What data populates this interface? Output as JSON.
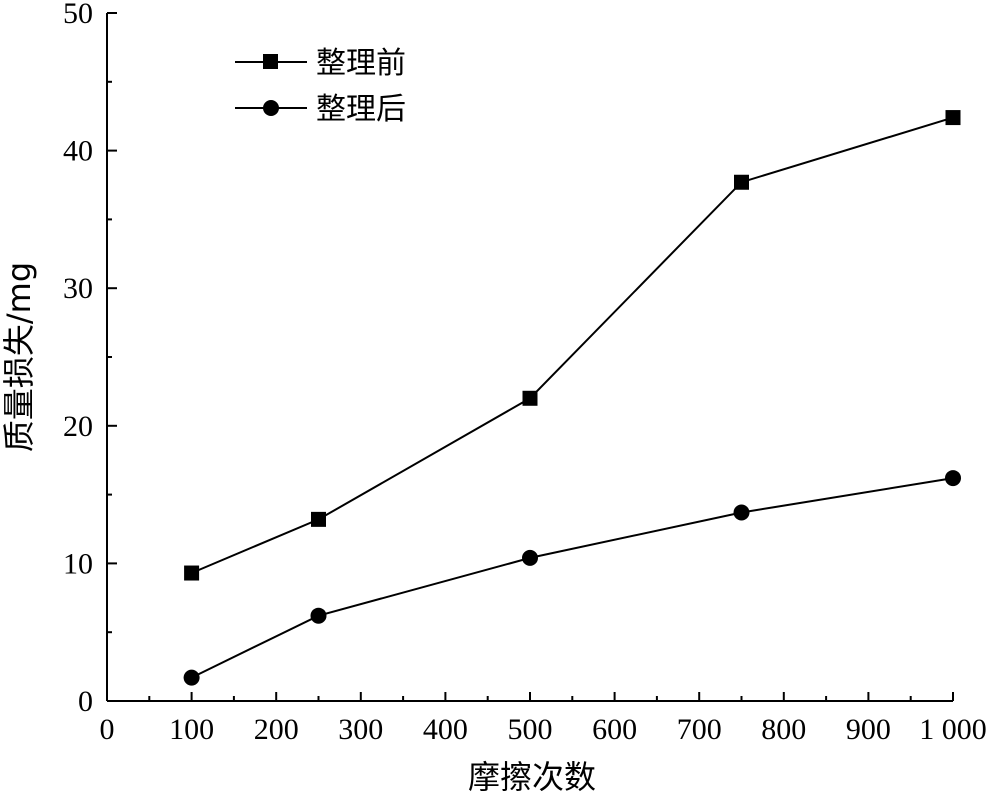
{
  "chart_data": {
    "type": "line",
    "xlabel": "摩擦次数",
    "ylabel": "质量损失/mg",
    "xlim": [
      0,
      1000
    ],
    "ylim": [
      0,
      50
    ],
    "x_ticks": [
      0,
      100,
      200,
      300,
      400,
      500,
      600,
      700,
      800,
      900,
      1000
    ],
    "x_tick_labels": [
      "0",
      "100",
      "200",
      "300",
      "400",
      "500",
      "600",
      "700",
      "800",
      "900",
      "1 000"
    ],
    "y_ticks": [
      0,
      10,
      20,
      30,
      40,
      50
    ],
    "y_tick_labels": [
      "0",
      "10",
      "20",
      "30",
      "40",
      "50"
    ],
    "grid": false,
    "legend_position": "top-left",
    "series": [
      {
        "name": "整理前",
        "marker": "square",
        "x": [
          100,
          250,
          500,
          750,
          1000
        ],
        "values": [
          9.3,
          13.2,
          22.0,
          37.7,
          42.4
        ]
      },
      {
        "name": "整理后",
        "marker": "circle",
        "x": [
          100,
          250,
          500,
          750,
          1000
        ],
        "values": [
          1.7,
          6.2,
          10.4,
          13.7,
          16.2
        ]
      }
    ]
  }
}
